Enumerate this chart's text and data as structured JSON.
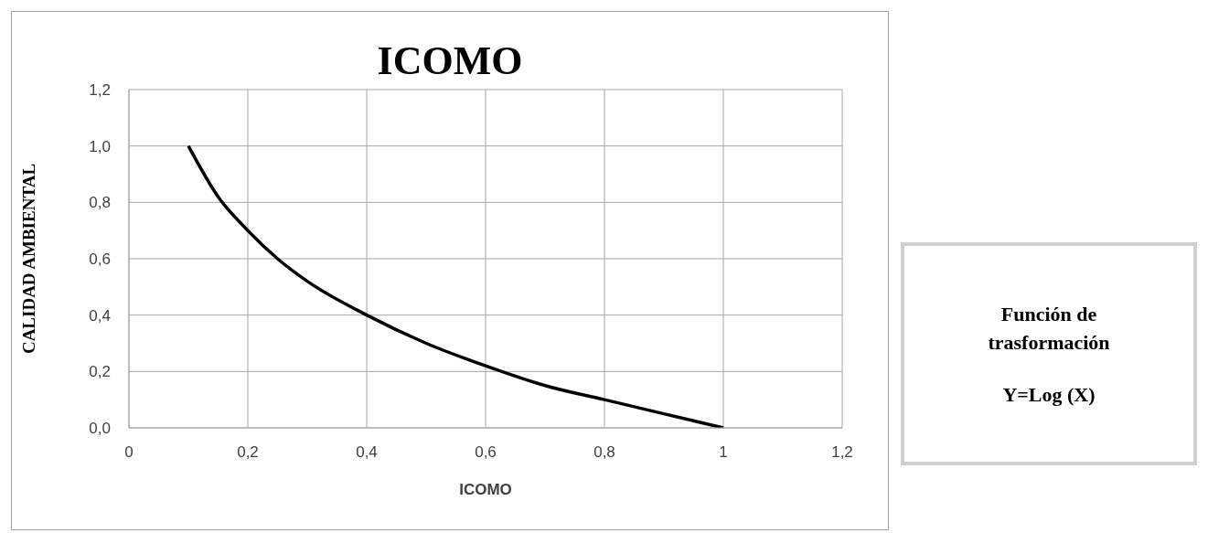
{
  "chart_data": [
    {
      "type": "line",
      "title": "ICOMO",
      "xlabel": "ICOMO",
      "ylabel": "CALIDAD AMBIENTAL",
      "x": [
        0.1,
        0.15,
        0.2,
        0.25,
        0.3,
        0.4,
        0.5,
        0.6,
        0.7,
        0.8,
        0.9,
        1.0
      ],
      "values": [
        1.0,
        0.82,
        0.7,
        0.6,
        0.52,
        0.4,
        0.3,
        0.22,
        0.15,
        0.1,
        0.05,
        0.0
      ],
      "color": "#000000",
      "xlim": [
        0,
        1.2
      ],
      "ylim": [
        0,
        1.2
      ],
      "xticks": [
        0,
        {
          "value": 0.2,
          "label": "0,2"
        },
        {
          "value": 0.4,
          "label": "0,4"
        },
        {
          "value": 0.6,
          "label": "0,6"
        },
        {
          "value": 0.8,
          "label": "0,8"
        },
        1,
        {
          "value": 1.2,
          "label": "1,2"
        }
      ],
      "yticks": [
        {
          "value": 0,
          "label": "0,0"
        },
        {
          "value": 0.2,
          "label": "0,2"
        },
        {
          "value": 0.4,
          "label": "0,4"
        },
        {
          "value": 0.6,
          "label": "0,6"
        },
        {
          "value": 0.8,
          "label": "0,8"
        },
        {
          "value": 1.0,
          "label": "1,0"
        },
        {
          "value": 1.2,
          "label": "1,2"
        }
      ],
      "grid": true
    },
    {
      "type": "other",
      "annotations": [
        "Función de trasformación",
        "Y=Log (X)"
      ]
    }
  ]
}
